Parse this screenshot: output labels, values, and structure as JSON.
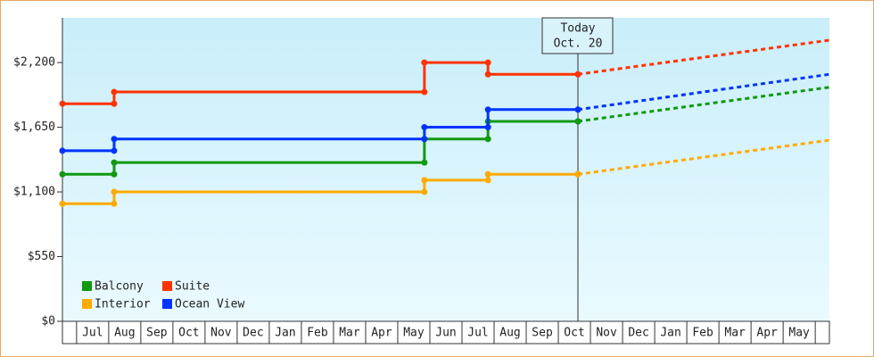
{
  "chart_data": {
    "type": "step",
    "categories": [
      "Jul",
      "Aug",
      "Sep",
      "Oct",
      "Nov",
      "Dec",
      "Jan",
      "Feb",
      "Mar",
      "Apr",
      "May",
      "Jun",
      "Jul",
      "Aug",
      "Sep",
      "Oct",
      "Nov",
      "Dec",
      "Jan",
      "Feb",
      "Mar",
      "Apr",
      "May"
    ],
    "xlim": [
      -0.44,
      23.44
    ],
    "ylim": [
      0,
      2580
    ],
    "yticks": [
      {
        "value": 0,
        "label": "$0"
      },
      {
        "value": 550,
        "label": "$550"
      },
      {
        "value": 1100,
        "label": "$1,100"
      },
      {
        "value": 1650,
        "label": "$1,650"
      },
      {
        "value": 2200,
        "label": "$2,200"
      }
    ],
    "forecast_x": 23.44,
    "series": [
      {
        "name": "Balcony",
        "color": "#119911",
        "x": [
          -0.44,
          1.17,
          10.83,
          12.81,
          15.61
        ],
        "values": [
          1250,
          1350,
          1550,
          1700,
          1700
        ],
        "forecast": 1990
      },
      {
        "name": "Suite",
        "color": "#ff3300",
        "x": [
          -0.44,
          1.17,
          10.83,
          12.81,
          15.61
        ],
        "values": [
          1850,
          1950,
          2200,
          2100,
          2100
        ],
        "forecast": 2390
      },
      {
        "name": "Interior",
        "color": "#ffaa00",
        "x": [
          -0.44,
          1.17,
          10.83,
          12.81,
          15.61
        ],
        "values": [
          1000,
          1100,
          1200,
          1250,
          1250
        ],
        "forecast": 1540
      },
      {
        "name": "Ocean View",
        "color": "#0033ff",
        "x": [
          -0.44,
          1.17,
          10.83,
          12.81,
          15.61
        ],
        "values": [
          1450,
          1550,
          1650,
          1800,
          1800
        ],
        "forecast": 2100
      }
    ],
    "today": {
      "x": 15.61,
      "label": "Today",
      "date": "Oct. 20"
    }
  }
}
